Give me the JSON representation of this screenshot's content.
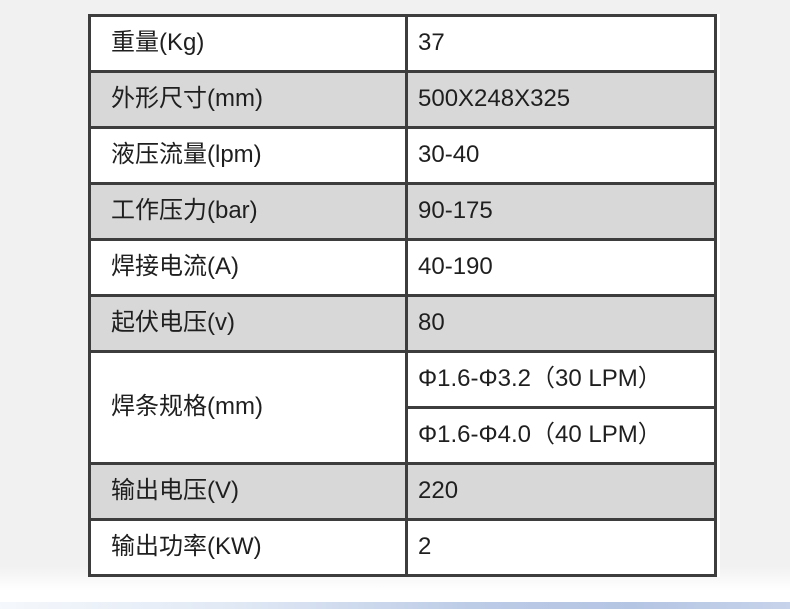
{
  "table": {
    "rows": [
      {
        "label": "重量(Kg)",
        "value": "37"
      },
      {
        "label": "外形尺寸(mm)",
        "value": "500X248X325"
      },
      {
        "label": "液压流量(lpm)",
        "value": "30-40"
      },
      {
        "label": "工作压力(bar)",
        "value": "90-175"
      },
      {
        "label": "焊接电流(A)",
        "value": "40-190"
      },
      {
        "label": "起伏电压(v)",
        "value": "80"
      },
      {
        "label": "焊条规格(mm)",
        "values": [
          "Φ1.6-Φ3.2（30 LPM）",
          "Φ1.6-Φ4.0（40 LPM）"
        ]
      },
      {
        "label": "输出电压(V)",
        "value": "220"
      },
      {
        "label": "输出功率(KW)",
        "value": "2"
      }
    ]
  },
  "colors": {
    "page_background": "#f1f1f1",
    "row_alternate": "#d8d8d8",
    "table_border": "#3d3d3d",
    "text": "#1f1f1f",
    "bottom_strip_blue": "#b4c5e3"
  }
}
